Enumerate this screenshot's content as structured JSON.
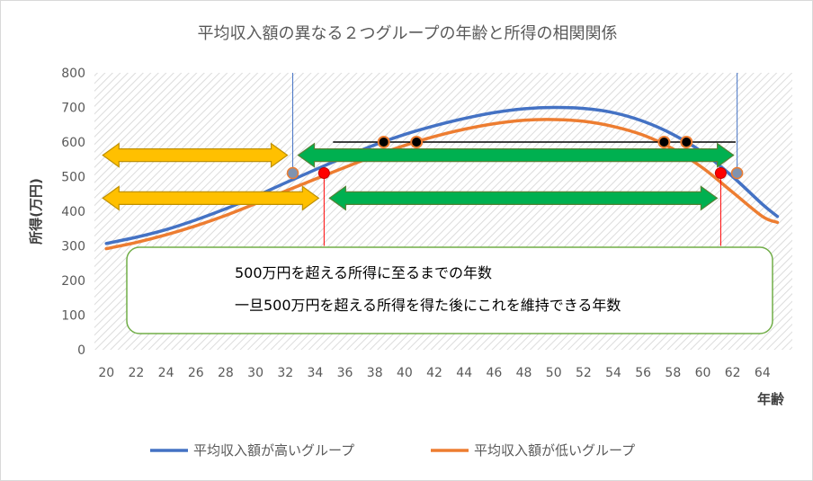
{
  "chart_data": {
    "type": "line",
    "title": "平均収入額の異なる２つグループの年齢と所得の相関関係",
    "xlabel": "年齢",
    "ylabel": "所得(万円)",
    "xlim": [
      20,
      65
    ],
    "ylim": [
      0,
      800
    ],
    "x_ticks": [
      20,
      22,
      24,
      26,
      28,
      30,
      32,
      34,
      36,
      38,
      40,
      42,
      44,
      46,
      48,
      50,
      52,
      54,
      56,
      58,
      60,
      62,
      64
    ],
    "y_ticks": [
      0,
      100,
      200,
      300,
      400,
      500,
      600,
      700,
      800
    ],
    "grid": "hatched plot area",
    "legend_position": "bottom",
    "series": [
      {
        "name": "平均収入額が高いグループ",
        "color": "#4472c4",
        "x": [
          20,
          22,
          24,
          26,
          28,
          30,
          32,
          34,
          36,
          38,
          40,
          42,
          44,
          46,
          48,
          50,
          52,
          54,
          56,
          58,
          60,
          62,
          64,
          65
        ],
        "y": [
          307,
          325,
          347,
          375,
          407,
          443,
          482,
          520,
          557,
          592,
          622,
          647,
          668,
          685,
          696,
          700,
          697,
          685,
          660,
          622,
          570,
          500,
          420,
          385
        ]
      },
      {
        "name": "平均収入額が低いグループ",
        "color": "#ed7d31",
        "x": [
          20,
          22,
          24,
          26,
          28,
          30,
          32,
          34,
          36,
          38,
          40,
          42,
          44,
          46,
          48,
          50,
          52,
          54,
          56,
          58,
          60,
          62,
          64,
          65
        ],
        "y": [
          292,
          310,
          332,
          358,
          388,
          422,
          458,
          493,
          527,
          560,
          590,
          616,
          637,
          653,
          663,
          665,
          660,
          645,
          620,
          580,
          525,
          455,
          385,
          368
        ]
      }
    ],
    "annotations": {
      "line_600": {
        "x1": 35.2,
        "x2": 62.2,
        "y": 600
      },
      "crossings_600": [
        38.6,
        40.8,
        57.4,
        58.9
      ],
      "high_500_points": [
        32.5,
        62.3
      ],
      "low_500_points": [
        34.6,
        61.2
      ],
      "orange_arrows": [
        {
          "from": 20,
          "to": 32.5,
          "y": 562
        },
        {
          "from": 20,
          "to": 34.6,
          "y": 438
        }
      ],
      "green_arrows": [
        {
          "from": 32.5,
          "to": 62.3,
          "y": 562
        },
        {
          "from": 34.6,
          "to": 61.2,
          "y": 438
        }
      ],
      "colors": {
        "orange_arrow": "#ffc000",
        "orange_arrow_edge": "#bf9000",
        "green_arrow": "#00b050",
        "green_arrow_edge": "#548235",
        "box_edge": "#70ad47"
      }
    },
    "notes": [
      {
        "text": "500万円を超える所得に至るまでの年数",
        "arrow": "orange"
      },
      {
        "text": "一旦500万円を超える所得を得た後にこれを維持できる年数",
        "arrow": "green"
      }
    ]
  }
}
